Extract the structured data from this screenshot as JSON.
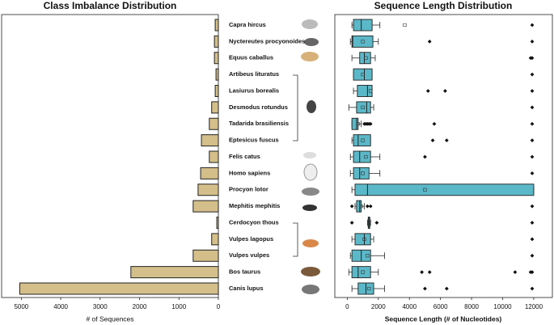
{
  "chart_data": [
    {
      "type": "hbar",
      "title": "Class Imbalance Distribution",
      "xlabel": "# of Sequences",
      "categories": [
        "Capra hircus",
        "Nyctereutes procyonoides",
        "Equus caballus",
        "Artibeus lituratus",
        "Lasiurus borealis",
        "Desmodus rotundus",
        "Tadarida brasiliensis",
        "Eptesicus fuscus",
        "Felis catus",
        "Homo sapiens",
        "Procyon lotor",
        "Mephitis mephitis",
        "Cerdocyon thous",
        "Vulpes lagopus",
        "Vulpes vulpes",
        "Bos taurus",
        "Canis lupus"
      ],
      "values": [
        80,
        100,
        100,
        60,
        80,
        170,
        230,
        430,
        230,
        450,
        515,
        640,
        40,
        170,
        640,
        2220,
        5040
      ],
      "color": "#d4bf8a",
      "xlim": [
        5500,
        0
      ],
      "xticks": [
        5000,
        4000,
        3000,
        2000,
        1000,
        0
      ]
    },
    {
      "type": "box",
      "title": "Sequence Length Distribution",
      "xlabel": "Sequence Length (# of Nucleotides)",
      "color": "#5bb8c8",
      "xlim": [
        -800,
        13200
      ],
      "xticks": [
        0,
        2000,
        4000,
        6000,
        8000,
        10000,
        12000
      ],
      "boxes": [
        {
          "min": 300,
          "q1": 400,
          "median": 900,
          "q3": 1600,
          "max": 2100,
          "mean": 3700,
          "outliers": [
            11900
          ]
        },
        {
          "min": 200,
          "q1": 300,
          "median": 350,
          "q3": 1650,
          "max": 2000,
          "mean": 1000,
          "outliers": [
            5300,
            11900
          ]
        },
        {
          "min": 300,
          "q1": 800,
          "median": 1100,
          "q3": 1500,
          "max": 1800,
          "mean": 1200,
          "outliers": [
            11800,
            11900
          ]
        },
        {
          "min": 400,
          "q1": 400,
          "median": 1100,
          "q3": 1600,
          "max": 1600,
          "mean": 1000,
          "outliers": [
            11900
          ]
        },
        {
          "min": 400,
          "q1": 650,
          "median": 1300,
          "q3": 1600,
          "max": 1600,
          "mean": 1500,
          "outliers": [
            5200,
            6300,
            11900
          ]
        },
        {
          "min": 100,
          "q1": 600,
          "median": 1250,
          "q3": 1500,
          "max": 1700,
          "mean": 1000,
          "outliers": [
            11900
          ]
        },
        {
          "min": 300,
          "q1": 300,
          "median": 600,
          "q3": 700,
          "max": 900,
          "mean": 700,
          "outliers": [
            1100,
            1200,
            1300,
            1400,
            1500,
            5600,
            11900
          ]
        },
        {
          "min": 300,
          "q1": 400,
          "median": 700,
          "q3": 1500,
          "max": 1500,
          "mean": 1000,
          "outliers": [
            5500,
            6400,
            11900
          ]
        },
        {
          "min": 200,
          "q1": 400,
          "median": 800,
          "q3": 1500,
          "max": 2100,
          "mean": 1200,
          "outliers": [
            5000,
            11900
          ]
        },
        {
          "min": 200,
          "q1": 400,
          "median": 800,
          "q3": 1400,
          "max": 2100,
          "mean": 1000,
          "outliers": [
            11900
          ]
        },
        {
          "min": 300,
          "q1": 500,
          "median": 1300,
          "q3": 12000,
          "max": 12000,
          "mean": 5000,
          "outliers": []
        },
        {
          "min": 500,
          "q1": 600,
          "median": 800,
          "q3": 900,
          "max": 1100,
          "mean": 900,
          "outliers": [
            300,
            1300,
            1500,
            11900
          ]
        },
        {
          "min": 1300,
          "q1": 1350,
          "median": 1400,
          "q3": 1450,
          "max": 1500,
          "mean": 1400,
          "outliers": [
            300,
            1900,
            11900
          ]
        },
        {
          "min": 300,
          "q1": 500,
          "median": 1100,
          "q3": 1500,
          "max": 1700,
          "mean": 1100,
          "outliers": [
            11900
          ]
        },
        {
          "min": 200,
          "q1": 300,
          "median": 900,
          "q3": 1500,
          "max": 2400,
          "mean": 1300,
          "outliers": [
            11900
          ]
        },
        {
          "min": 100,
          "q1": 300,
          "median": 700,
          "q3": 1500,
          "max": 2000,
          "mean": 1000,
          "outliers": [
            4800,
            5300,
            10800,
            11800,
            11900
          ]
        },
        {
          "min": 300,
          "q1": 700,
          "median": 1200,
          "q3": 1700,
          "max": 2400,
          "mean": 1400,
          "outliers": [
            5000,
            6400,
            11900
          ]
        }
      ]
    }
  ]
}
